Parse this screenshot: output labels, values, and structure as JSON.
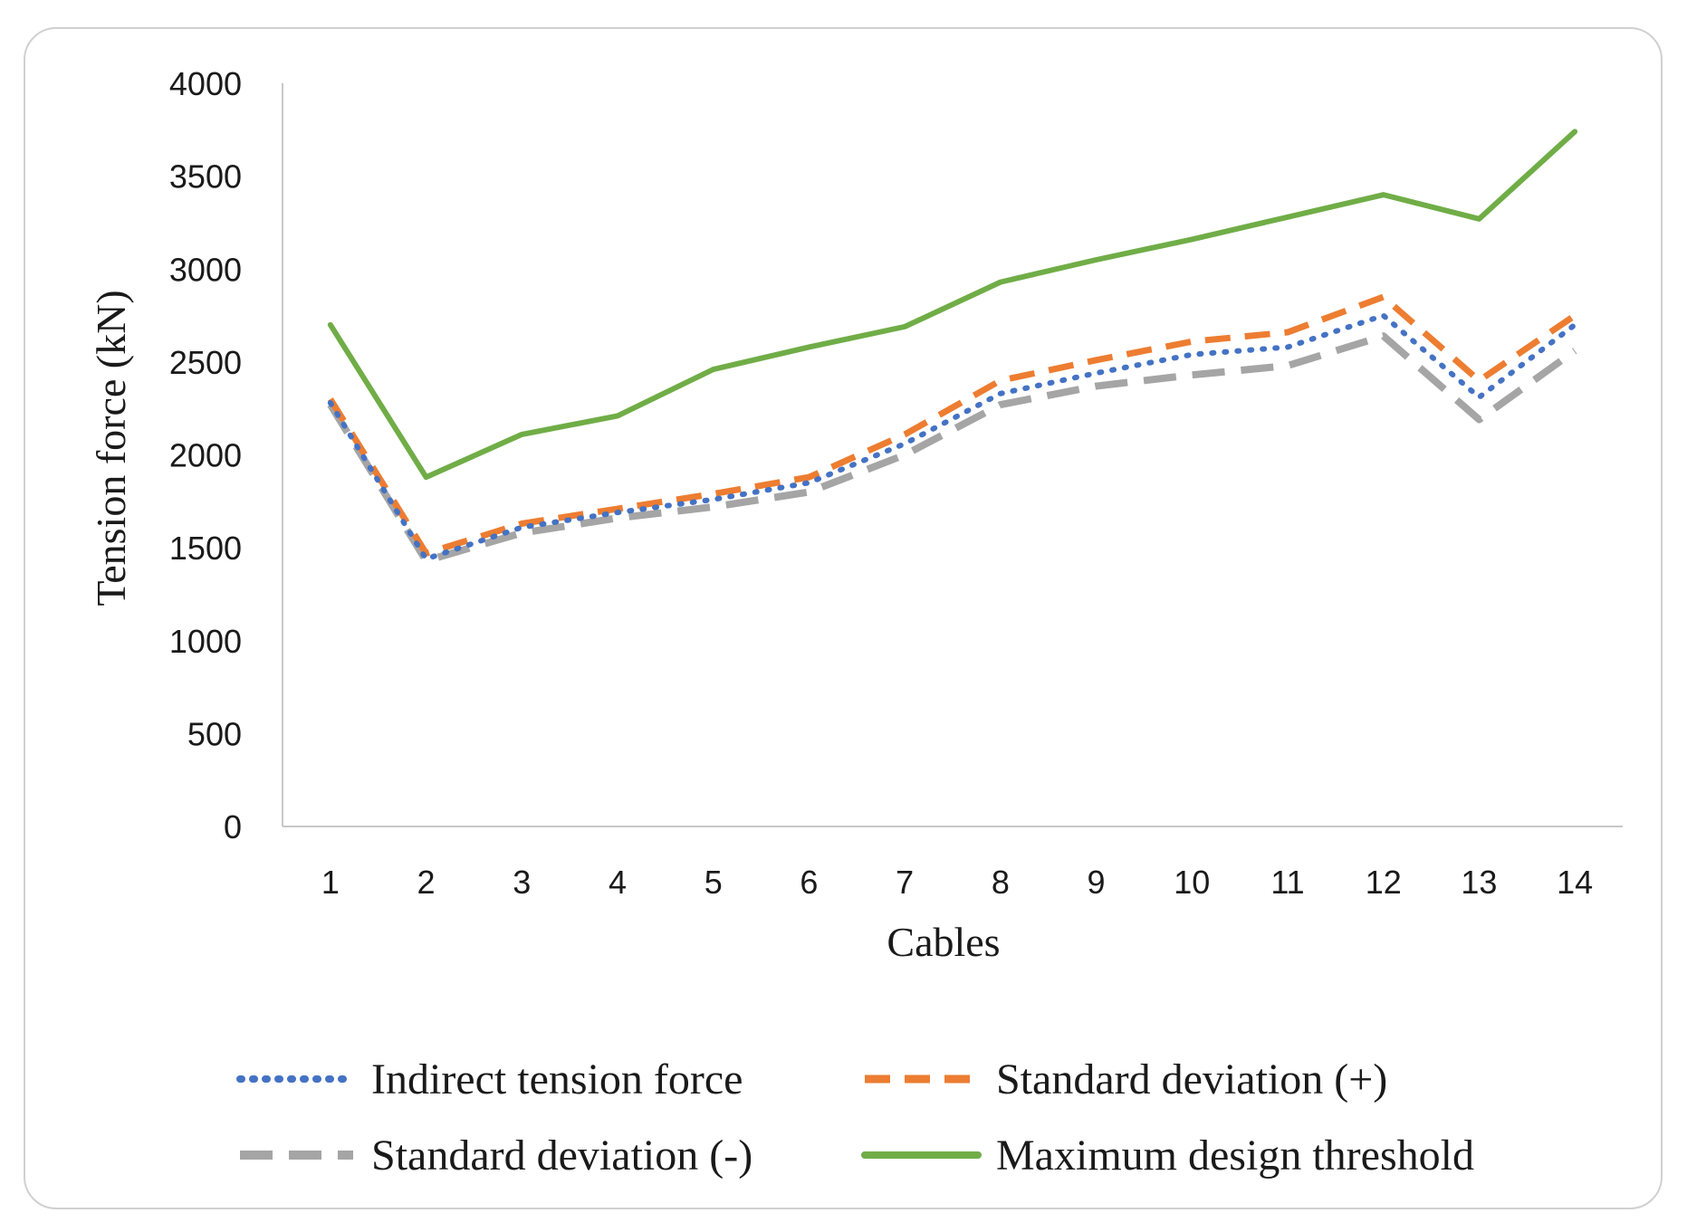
{
  "chart_data": {
    "type": "line",
    "title": "",
    "xlabel": "Cables",
    "ylabel": "Tension force (kN)",
    "ylim": [
      0,
      4000
    ],
    "yticks": [
      0,
      500,
      1000,
      1500,
      2000,
      2500,
      3000,
      3500,
      4000
    ],
    "categories": [
      "1",
      "2",
      "3",
      "4",
      "5",
      "6",
      "7",
      "8",
      "9",
      "10",
      "11",
      "12",
      "13",
      "14"
    ],
    "grid": false,
    "legend_position": "bottom",
    "series": [
      {
        "name": "Indirect tension force",
        "color": "#4472c4",
        "style": "dotted",
        "values": [
          2280,
          1440,
          1610,
          1690,
          1760,
          1850,
          2060,
          2330,
          2440,
          2540,
          2580,
          2750,
          2310,
          2700
        ]
      },
      {
        "name": "Standard deviation (+)",
        "color": "#ed7d31",
        "style": "dashed",
        "values": [
          2300,
          1470,
          1630,
          1710,
          1790,
          1880,
          2110,
          2400,
          2510,
          2610,
          2660,
          2850,
          2400,
          2750
        ]
      },
      {
        "name": "Standard deviation (-)",
        "color": "#a5a5a5",
        "style": "dashed-long",
        "values": [
          2270,
          1430,
          1580,
          1660,
          1720,
          1800,
          2000,
          2270,
          2370,
          2430,
          2480,
          2640,
          2190,
          2560
        ]
      },
      {
        "name": "Maximum design threshold",
        "color": "#70ad47",
        "style": "solid",
        "values": [
          2700,
          1880,
          2110,
          2210,
          2460,
          2580,
          2690,
          2930,
          3050,
          3160,
          3280,
          3400,
          3270,
          3740
        ]
      }
    ]
  }
}
